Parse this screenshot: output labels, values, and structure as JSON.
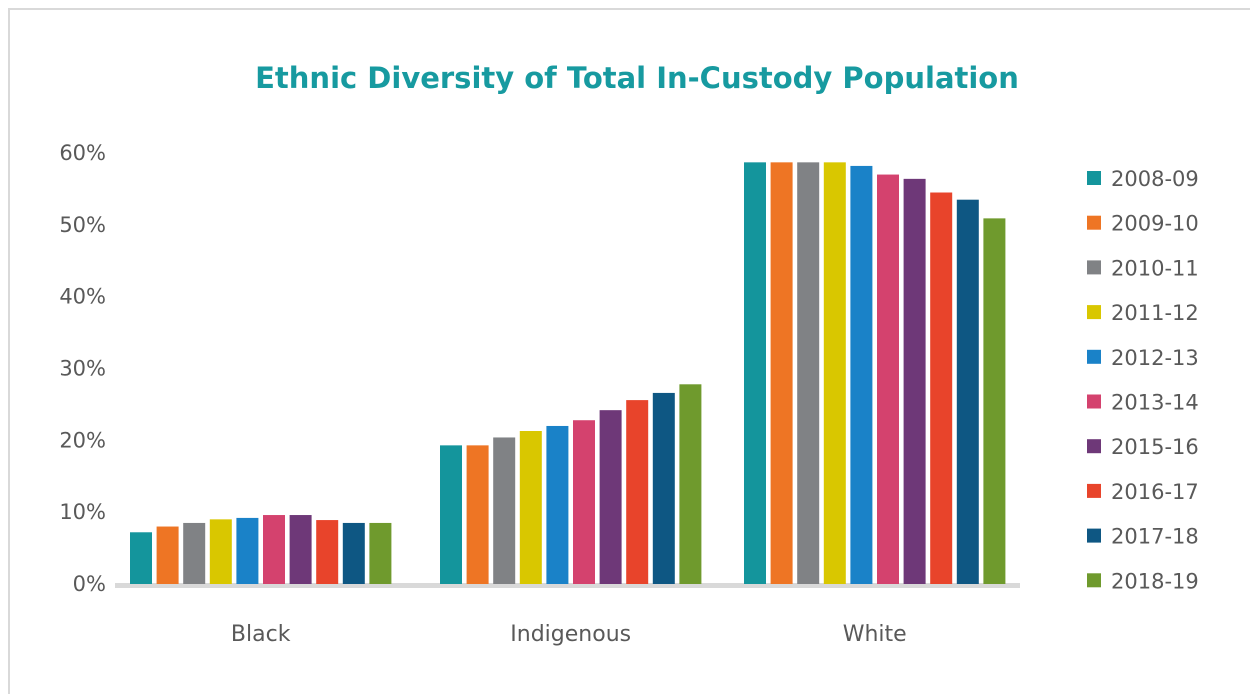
{
  "chart_data": {
    "type": "bar",
    "title": "Ethnic Diversity of Total In-Custody Population",
    "xlabel": "",
    "ylabel": "",
    "ylim": [
      0,
      60
    ],
    "yticks": [
      "0%",
      "10%",
      "20%",
      "30%",
      "40%",
      "50%",
      "60%"
    ],
    "grid": false,
    "legend_position": "right",
    "categories": [
      "Black",
      "Indigenous",
      "White"
    ],
    "series": [
      {
        "name": "2008-09",
        "color": "#14959c",
        "values": [
          7.2,
          19.3,
          58.7
        ]
      },
      {
        "name": "2009-10",
        "color": "#ee7524",
        "values": [
          8.0,
          19.3,
          58.7
        ]
      },
      {
        "name": "2010-11",
        "color": "#808285",
        "values": [
          8.5,
          20.4,
          58.7
        ]
      },
      {
        "name": "2011-12",
        "color": "#d9c700",
        "values": [
          9.0,
          21.3,
          58.7
        ]
      },
      {
        "name": "2012-13",
        "color": "#1a82c8",
        "values": [
          9.2,
          22.0,
          58.2
        ]
      },
      {
        "name": "2013-14",
        "color": "#d4426e",
        "values": [
          9.6,
          22.8,
          57.0
        ]
      },
      {
        "name": "2015-16",
        "color": "#6e3878",
        "values": [
          9.6,
          24.2,
          56.4
        ]
      },
      {
        "name": "2016-17",
        "color": "#e8442b",
        "values": [
          8.9,
          25.6,
          54.5
        ]
      },
      {
        "name": "2017-18",
        "color": "#0e5783",
        "values": [
          8.5,
          26.6,
          53.5
        ]
      },
      {
        "name": "2018-19",
        "color": "#6f9a2d",
        "values": [
          8.5,
          27.8,
          50.9
        ]
      }
    ]
  }
}
